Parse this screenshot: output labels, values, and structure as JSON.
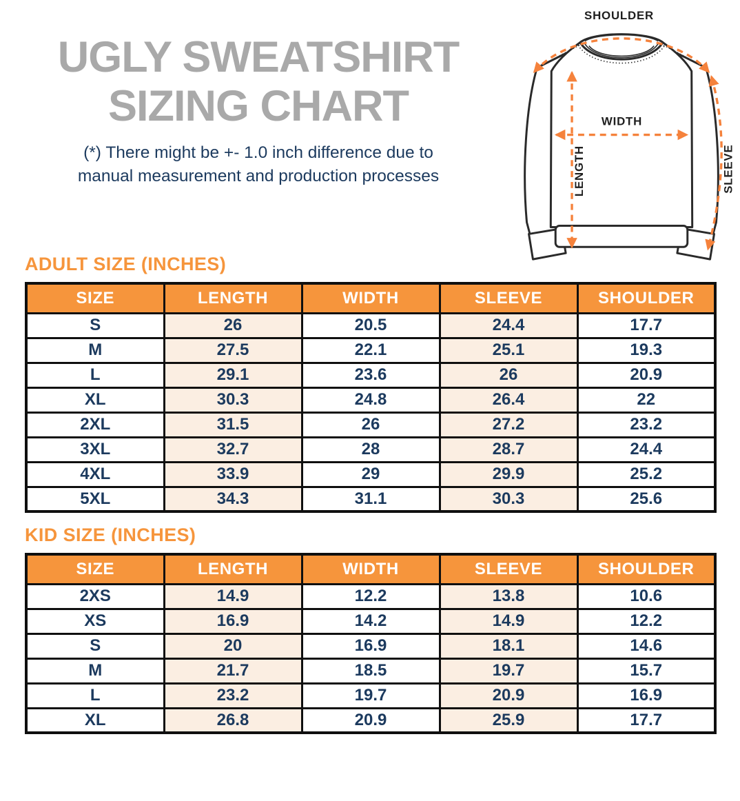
{
  "header": {
    "title_line1": "UGLY SWEATSHIRT",
    "title_line2": "SIZING CHART",
    "subtitle_line1": "(*) There might be +- 1.0 inch difference due to",
    "subtitle_line2": "manual measurement and production processes"
  },
  "diagram": {
    "labels": {
      "shoulder": "SHOULDER",
      "width": "WIDTH",
      "length": "LENGTH",
      "sleeve": "SLEEVE"
    }
  },
  "adult_table": {
    "heading": "ADULT SIZE (INCHES)",
    "columns": [
      "SIZE",
      "LENGTH",
      "WIDTH",
      "SLEEVE",
      "SHOULDER"
    ],
    "rows": [
      [
        "S",
        "26",
        "20.5",
        "24.4",
        "17.7"
      ],
      [
        "M",
        "27.5",
        "22.1",
        "25.1",
        "19.3"
      ],
      [
        "L",
        "29.1",
        "23.6",
        "26",
        "20.9"
      ],
      [
        "XL",
        "30.3",
        "24.8",
        "26.4",
        "22"
      ],
      [
        "2XL",
        "31.5",
        "26",
        "27.2",
        "23.2"
      ],
      [
        "3XL",
        "32.7",
        "28",
        "28.7",
        "24.4"
      ],
      [
        "4XL",
        "33.9",
        "29",
        "29.9",
        "25.2"
      ],
      [
        "5XL",
        "34.3",
        "31.1",
        "30.3",
        "25.6"
      ]
    ]
  },
  "kid_table": {
    "heading": "KID SIZE (INCHES)",
    "columns": [
      "SIZE",
      "LENGTH",
      "WIDTH",
      "SLEEVE",
      "SHOULDER"
    ],
    "rows": [
      [
        "2XS",
        "14.9",
        "12.2",
        "13.8",
        "10.6"
      ],
      [
        "XS",
        "16.9",
        "14.2",
        "14.9",
        "12.2"
      ],
      [
        "S",
        "20",
        "16.9",
        "18.1",
        "14.6"
      ],
      [
        "M",
        "21.7",
        "18.5",
        "19.7",
        "15.7"
      ],
      [
        "L",
        "23.2",
        "19.7",
        "20.9",
        "16.9"
      ],
      [
        "XL",
        "26.8",
        "20.9",
        "25.9",
        "17.7"
      ]
    ]
  },
  "colors": {
    "orange": "#F6953C",
    "peach": "#FBEEE2",
    "navy": "#1C3A5E",
    "title_gray": "#A9A9A9",
    "arrow_orange": "#F5823C",
    "border_black": "#0F0F0F"
  }
}
